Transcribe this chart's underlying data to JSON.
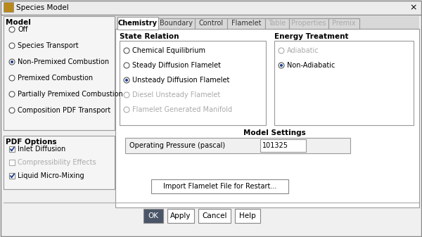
{
  "bg_color": "#f0f0f0",
  "title": "Species Model",
  "close_x": "×",
  "model_label": "Model",
  "model_options": [
    "Off",
    "Species Transport",
    "Non-Premixed Combustion",
    "Premixed Combustion",
    "Partially Premixed Combustion",
    "Composition PDF Transport"
  ],
  "model_selected": 2,
  "tabs": [
    "Chemistry",
    "Boundary",
    "Control",
    "Flamelet",
    "Table",
    "Properties",
    "Premix"
  ],
  "tab_widths": [
    58,
    52,
    46,
    54,
    34,
    56,
    44
  ],
  "active_tab": 0,
  "state_relation_label": "State Relation",
  "state_options": [
    "Chemical Equilibrium",
    "Steady Diffusion Flamelet",
    "Unsteady Diffusion Flamelet",
    "Diesel Unsteady Flamelet",
    "Flamelet Generated Manifold"
  ],
  "state_selected": 2,
  "state_disabled": [
    3,
    4
  ],
  "energy_label": "Energy Treatment",
  "energy_options": [
    "Adiabatic",
    "Non-Adiabatic"
  ],
  "energy_selected": 1,
  "energy_disabled": [
    0
  ],
  "model_settings_label": "Model Settings",
  "pressure_label": "Operating Pressure (pascal)",
  "pressure_value": "101325",
  "pdf_label": "PDF Options",
  "pdf_options": [
    "Inlet Diffusion",
    "Compressibility Effects",
    "Liquid Micro-Mixing"
  ],
  "pdf_checked": [
    true,
    false,
    true
  ],
  "import_btn": "Import Flamelet File for Restart...",
  "bottom_buttons": [
    "OK",
    "Apply",
    "Cancel",
    "Help"
  ],
  "ok_bg": "#4a5568",
  "ok_fg": "#ffffff",
  "text_color": "#000000",
  "disabled_color": "#aaaaaa",
  "radio_fill": "#1a3a8a",
  "check_fill": "#1a3a8a",
  "border_color": "#999999",
  "tab_border": "#bbbbbb"
}
